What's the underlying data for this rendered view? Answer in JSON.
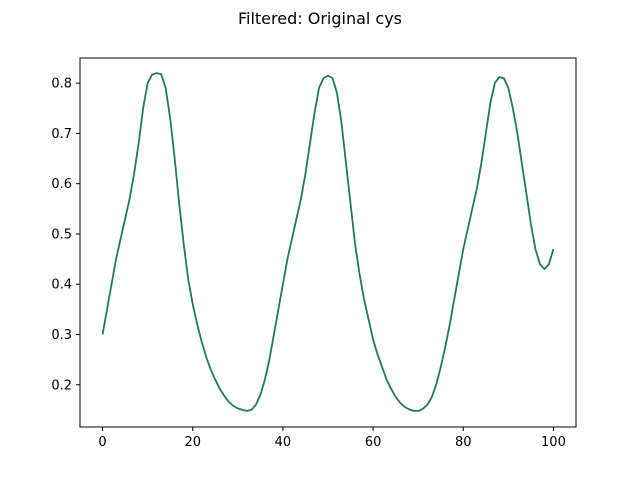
{
  "chart_data": {
    "type": "line",
    "title": "Filtered: Original cys",
    "xlabel": "",
    "ylabel": "",
    "xlim": [
      -5,
      105
    ],
    "ylim": [
      0.116,
      0.85
    ],
    "xticks": [
      0,
      20,
      40,
      60,
      80,
      100
    ],
    "yticks": [
      0.2,
      0.3,
      0.4,
      0.5,
      0.6,
      0.7,
      0.8
    ],
    "xtick_labels": [
      "0",
      "20",
      "40",
      "60",
      "80",
      "100"
    ],
    "ytick_labels": [
      "0.2",
      "0.3",
      "0.4",
      "0.5",
      "0.6",
      "0.7",
      "0.8"
    ],
    "grid": false,
    "series": [
      {
        "color": "#1f7a5c",
        "x": [
          0,
          1,
          2,
          3,
          4,
          5,
          6,
          7,
          8,
          9,
          10,
          11,
          12,
          13,
          14,
          15,
          16,
          17,
          18,
          19,
          20,
          21,
          22,
          23,
          24,
          25,
          26,
          27,
          28,
          29,
          30,
          31,
          32,
          33,
          34,
          35,
          36,
          37,
          38,
          39,
          40,
          41,
          42,
          43,
          44,
          45,
          46,
          47,
          48,
          49,
          50,
          51,
          52,
          53,
          54,
          55,
          56,
          57,
          58,
          59,
          60,
          61,
          62,
          63,
          64,
          65,
          66,
          67,
          68,
          69,
          70,
          71,
          72,
          73,
          74,
          75,
          76,
          77,
          78,
          79,
          80,
          81,
          82,
          83,
          84,
          85,
          86,
          87,
          88,
          89,
          90,
          91,
          92,
          93,
          94,
          95,
          96,
          97,
          98,
          99,
          100
        ],
        "y": [
          0.3,
          0.35,
          0.4,
          0.45,
          0.49,
          0.53,
          0.57,
          0.62,
          0.68,
          0.75,
          0.8,
          0.817,
          0.82,
          0.818,
          0.79,
          0.73,
          0.65,
          0.56,
          0.48,
          0.41,
          0.36,
          0.32,
          0.285,
          0.255,
          0.23,
          0.21,
          0.192,
          0.178,
          0.166,
          0.158,
          0.153,
          0.15,
          0.148,
          0.15,
          0.16,
          0.18,
          0.21,
          0.25,
          0.3,
          0.35,
          0.4,
          0.45,
          0.49,
          0.53,
          0.57,
          0.62,
          0.68,
          0.74,
          0.79,
          0.81,
          0.815,
          0.81,
          0.78,
          0.72,
          0.64,
          0.56,
          0.48,
          0.42,
          0.37,
          0.33,
          0.29,
          0.26,
          0.235,
          0.21,
          0.192,
          0.176,
          0.164,
          0.156,
          0.151,
          0.148,
          0.148,
          0.152,
          0.16,
          0.175,
          0.2,
          0.235,
          0.275,
          0.32,
          0.37,
          0.42,
          0.47,
          0.51,
          0.55,
          0.59,
          0.64,
          0.7,
          0.76,
          0.8,
          0.812,
          0.81,
          0.79,
          0.75,
          0.7,
          0.64,
          0.58,
          0.52,
          0.47,
          0.44,
          0.43,
          0.44,
          0.47
        ]
      }
    ]
  }
}
